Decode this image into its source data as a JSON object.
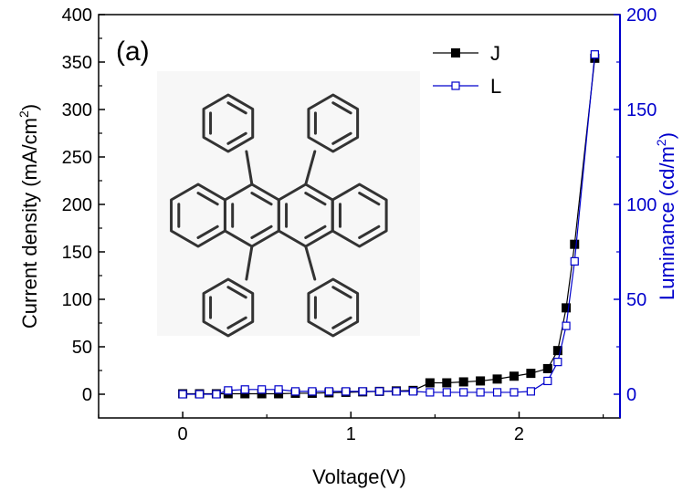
{
  "chart_data": {
    "type": "line",
    "panel_label": "(a)",
    "xlabel": "Voltage(V)",
    "ylabel_left": "Current density (mA/cm",
    "ylabel_left_sup": "2",
    "ylabel_left_tail": ")",
    "ylabel_right": "Luminance (cd/m",
    "ylabel_right_sup": "2",
    "ylabel_right_tail": ")",
    "xlim": [
      -0.5,
      2.6
    ],
    "ylim_left": [
      -25,
      400
    ],
    "ylim_right": [
      -12.5,
      200
    ],
    "x_ticks": [
      0,
      1,
      2
    ],
    "y_left_ticks": [
      0,
      50,
      100,
      150,
      200,
      250,
      300,
      350,
      400
    ],
    "y_right_ticks": [
      0,
      50,
      100,
      150,
      200
    ],
    "colors": {
      "J": "#000000",
      "L": "#0000cc",
      "axis_left": "#000000",
      "axis_right": "#0000cc"
    },
    "series": [
      {
        "name": "J",
        "axis": "left",
        "marker": "filled-square",
        "points": [
          [
            0.0,
            0.5
          ],
          [
            0.1,
            0.5
          ],
          [
            0.2,
            0.5
          ],
          [
            0.27,
            0.5
          ],
          [
            0.37,
            0.5
          ],
          [
            0.47,
            0.5
          ],
          [
            0.57,
            0.5
          ],
          [
            0.67,
            1
          ],
          [
            0.77,
            1
          ],
          [
            0.87,
            1.5
          ],
          [
            0.97,
            2
          ],
          [
            1.07,
            2.5
          ],
          [
            1.17,
            3
          ],
          [
            1.27,
            3.5
          ],
          [
            1.37,
            4
          ],
          [
            1.47,
            12
          ],
          [
            1.57,
            12
          ],
          [
            1.67,
            13
          ],
          [
            1.77,
            14
          ],
          [
            1.87,
            16
          ],
          [
            1.97,
            19
          ],
          [
            2.07,
            22
          ],
          [
            2.17,
            27
          ],
          [
            2.23,
            46
          ],
          [
            2.28,
            91
          ],
          [
            2.33,
            158
          ],
          [
            2.45,
            354
          ]
        ]
      },
      {
        "name": "L",
        "axis": "right",
        "marker": "open-square",
        "points": [
          [
            0.0,
            0
          ],
          [
            0.1,
            0
          ],
          [
            0.2,
            0
          ],
          [
            0.27,
            2
          ],
          [
            0.37,
            2.5
          ],
          [
            0.47,
            2.5
          ],
          [
            0.57,
            2.5
          ],
          [
            0.67,
            1.5
          ],
          [
            0.77,
            1.5
          ],
          [
            0.87,
            1.5
          ],
          [
            0.97,
            1.5
          ],
          [
            1.07,
            1.5
          ],
          [
            1.17,
            1.5
          ],
          [
            1.27,
            1.5
          ],
          [
            1.37,
            1.5
          ],
          [
            1.47,
            1
          ],
          [
            1.57,
            1
          ],
          [
            1.67,
            1
          ],
          [
            1.77,
            1
          ],
          [
            1.87,
            1
          ],
          [
            1.97,
            1
          ],
          [
            2.07,
            1.5
          ],
          [
            2.17,
            7
          ],
          [
            2.23,
            17
          ],
          [
            2.28,
            36
          ],
          [
            2.33,
            70
          ],
          [
            2.45,
            179
          ]
        ]
      }
    ],
    "legend": {
      "position": "top-right",
      "entries": [
        "J",
        "L"
      ]
    },
    "inset": {
      "kind": "molecular-structure-drawing",
      "position": "upper-left"
    },
    "grid": false
  }
}
